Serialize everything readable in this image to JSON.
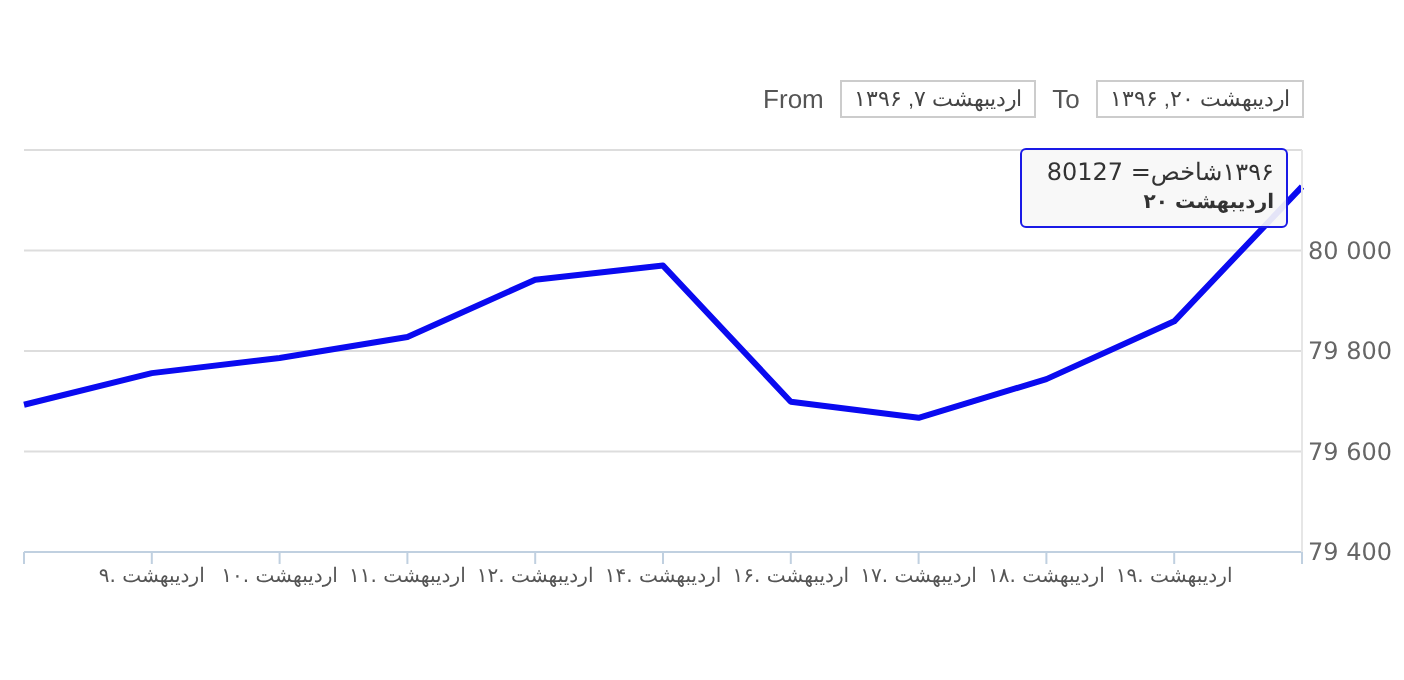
{
  "chart_data": {
    "type": "line",
    "categories": [
      null,
      "۹. اردیبهشت",
      "۱۰. اردیبهشت",
      "۱۱. اردیبهشت",
      "۱۲. اردیبهشت",
      "۱۴. اردیبهشت",
      "۱۶. اردیبهشت",
      "۱۷. اردیبهشت",
      "۱۸. اردیبهشت",
      "۱۹. اردیبهشت",
      null
    ],
    "series": [
      {
        "color": "#0a0af0",
        "values": [
          79693,
          79756,
          79786,
          79828,
          79942,
          79970,
          79699,
          79667,
          79744,
          79859,
          80127
        ]
      }
    ],
    "ylim": [
      79400,
      80200
    ],
    "yticks": [
      {
        "value": 79400,
        "label": "79 400"
      },
      {
        "value": 79600,
        "label": "79 600"
      },
      {
        "value": 79800,
        "label": "79 800"
      },
      {
        "value": 80000,
        "label": "80 000"
      },
      {
        "value": 80200,
        "label": null
      }
    ],
    "grid": "y",
    "marker": "none",
    "line_style": "solid",
    "annotations": [
      "From",
      "اردیبهشت ۷, ۱۳۹۶",
      "To",
      "اردیبهشت ۲۰, ۱۳۹۶",
      "۱۳۹۶شاخص= 80127\nاردیبهشت ۲۰"
    ]
  }
}
